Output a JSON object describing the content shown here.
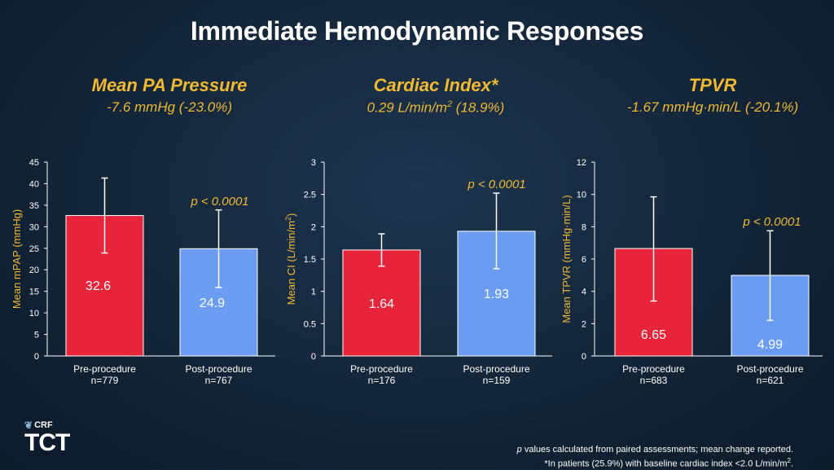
{
  "title": "Immediate Hemodynamic Responses",
  "panels": [
    {
      "heading": "Mean PA Pressure",
      "subtitle_parts": [
        "-7.6 mmHg (-23.0%)"
      ]
    },
    {
      "heading": "Cardiac Index*",
      "subtitle_parts": [
        "0.29 L/min/m",
        "2",
        " (18.9%)"
      ]
    },
    {
      "heading": "TPVR",
      "subtitle_parts": [
        "-1.67 mmHg·min/L (-20.1%)"
      ]
    }
  ],
  "chart_data": [
    {
      "type": "bar",
      "ylabel": "Mean mPAP (mmHg)",
      "ylim": [
        0,
        45
      ],
      "yticks": [
        0,
        5,
        10,
        15,
        20,
        25,
        30,
        35,
        40,
        45
      ],
      "categories": [
        "Pre-procedure",
        "Post-procedure"
      ],
      "category_n": [
        "n=779",
        "n=767"
      ],
      "values": [
        32.6,
        24.9
      ],
      "value_labels": [
        "32.6",
        "24.9"
      ],
      "error_bars": [
        [
          23.9,
          41.3
        ],
        [
          15.9,
          33.9
        ]
      ],
      "pvalue": "p < 0.0001",
      "bar_colors": [
        "#e8243a",
        "#6a9cf2"
      ]
    },
    {
      "type": "bar",
      "ylabel": "Mean CI (L/min/m",
      "ylabel_sup": "2",
      "ylabel_end": ")",
      "ylim": [
        0,
        3
      ],
      "yticks": [
        0,
        0.5,
        1,
        1.5,
        2,
        2.5,
        3
      ],
      "categories": [
        "Pre-procedure",
        "Post-procedure"
      ],
      "category_n": [
        "n=176",
        "n=159"
      ],
      "values": [
        1.64,
        1.93
      ],
      "value_labels": [
        "1.64",
        "1.93"
      ],
      "error_bars": [
        [
          1.39,
          1.89
        ],
        [
          1.35,
          2.52
        ]
      ],
      "pvalue": "p < 0.0001",
      "bar_colors": [
        "#e8243a",
        "#6a9cf2"
      ]
    },
    {
      "type": "bar",
      "ylabel": "Mean TPVR (mmHg·min/L)",
      "ylim": [
        0,
        12
      ],
      "yticks": [
        0,
        2,
        4,
        6,
        8,
        10,
        12
      ],
      "categories": [
        "Pre-procedure",
        "Post-procedure"
      ],
      "category_n": [
        "n=683",
        "n=621"
      ],
      "values": [
        6.65,
        4.99
      ],
      "value_labels": [
        "6.65",
        "4.99"
      ],
      "error_bars": [
        [
          3.4,
          9.85
        ],
        [
          2.2,
          7.75
        ]
      ],
      "pvalue": "p < 0.0001",
      "bar_colors": [
        "#e8243a",
        "#6a9cf2"
      ]
    }
  ],
  "footnotes": {
    "line1_italic": "p",
    "line1": " values calculated from paired assessments; mean change reported.",
    "line2": "*In patients (25.9%) with baseline cardiac index <2.0 L/min/m",
    "line2_sup": "2",
    "line2_end": "."
  },
  "logo": {
    "org": "CRF",
    "event": "TCT"
  }
}
